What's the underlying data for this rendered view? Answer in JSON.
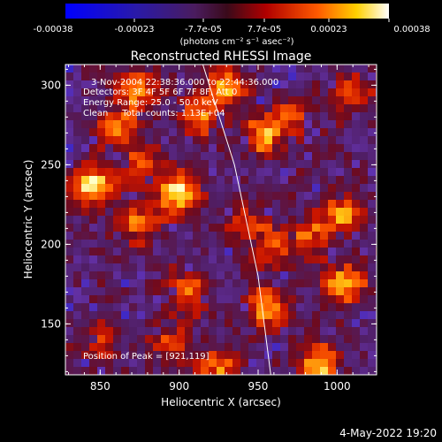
{
  "chart_data": {
    "type": "heatmap",
    "title": "Reconstructed RHESSI Image",
    "xlabel": "Heliocentric X (arcsec)",
    "ylabel": "Heliocentric Y (arcsec)",
    "xlim": [
      828,
      1025
    ],
    "ylim": [
      118,
      313
    ],
    "xticks": [
      850,
      900,
      950,
      1000
    ],
    "yticks": [
      150,
      200,
      250,
      300
    ],
    "colorbar": {
      "ticks": [
        "-0.00038",
        "-0.00023",
        "-7.7e-05",
        "7.7e-05",
        "0.00023",
        "0.00038"
      ],
      "range": [
        -0.00038,
        0.00038
      ],
      "unit_line": "(photons cm⁻² s⁻¹ asec⁻²)"
    },
    "annotations": [
      "3-Nov-2004 22:38:36.000 to 22:44:36.000",
      "Detectors: 3F 4F 5F 6F 7F 8F, Att 0",
      "Energy Range: 25.0 - 50.0 keV",
      "Clean     Total counts: 1.13E+04"
    ],
    "peak_label": "Position of Peak = [921,119]",
    "limb_curve": [
      [
        915,
        313
      ],
      [
        935,
        250
      ],
      [
        950,
        180
      ],
      [
        958,
        118
      ]
    ],
    "hotspots": [
      {
        "x": 845,
        "y": 237,
        "v": 1.0
      },
      {
        "x": 873,
        "y": 295,
        "v": 0.75
      },
      {
        "x": 860,
        "y": 272,
        "v": 0.6
      },
      {
        "x": 875,
        "y": 215,
        "v": 0.8
      },
      {
        "x": 900,
        "y": 232,
        "v": 1.0
      },
      {
        "x": 913,
        "y": 280,
        "v": 0.75
      },
      {
        "x": 930,
        "y": 298,
        "v": 0.8
      },
      {
        "x": 953,
        "y": 268,
        "v": 0.75
      },
      {
        "x": 970,
        "y": 280,
        "v": 0.6
      },
      {
        "x": 985,
        "y": 205,
        "v": 0.7
      },
      {
        "x": 1005,
        "y": 220,
        "v": 0.7
      },
      {
        "x": 955,
        "y": 160,
        "v": 0.85
      },
      {
        "x": 960,
        "y": 200,
        "v": 0.55
      },
      {
        "x": 1005,
        "y": 175,
        "v": 0.9
      },
      {
        "x": 990,
        "y": 125,
        "v": 1.0
      },
      {
        "x": 925,
        "y": 122,
        "v": 0.75
      },
      {
        "x": 905,
        "y": 170,
        "v": 0.65
      },
      {
        "x": 850,
        "y": 140,
        "v": 0.55
      },
      {
        "x": 895,
        "y": 138,
        "v": 0.5
      },
      {
        "x": 1010,
        "y": 295,
        "v": 0.6
      },
      {
        "x": 940,
        "y": 210,
        "v": 0.5
      },
      {
        "x": 875,
        "y": 250,
        "v": 0.6
      }
    ]
  },
  "footer": {
    "timestamp": "4-May-2022 19:20"
  }
}
